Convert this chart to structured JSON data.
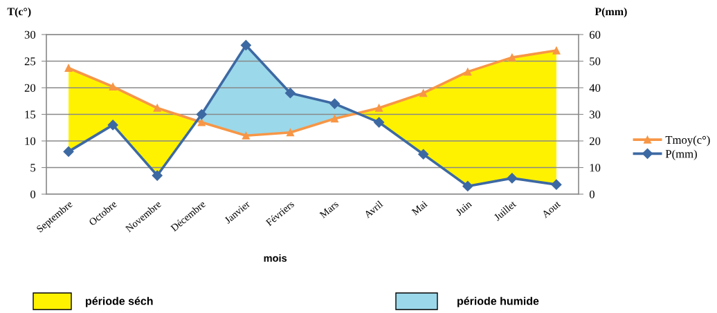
{
  "chart_data": {
    "type": "line",
    "xlabel": "mois",
    "ylabel": "T(c°)",
    "y2label": "P(mm)",
    "categories": [
      "Septembre",
      "Octobre",
      "Novembre",
      "Décembre",
      "Janvier",
      "Févriers",
      "Mars",
      "Avril",
      "Mai",
      "Juin",
      "Juillet",
      "Aout"
    ],
    "series": [
      {
        "name": "Tmoy(c°)",
        "color": "#f79646",
        "marker": "triangle",
        "values": [
          23.7,
          20.2,
          16.2,
          13.5,
          11.0,
          11.6,
          14.2,
          16.2,
          19.0,
          23.0,
          25.7,
          27.0
        ]
      },
      {
        "name": "P(mm)",
        "axis": "y2",
        "color": "#3d69a3",
        "marker": "diamond",
        "values": [
          16,
          26,
          7,
          30,
          56,
          38,
          34,
          27,
          15,
          3,
          6,
          3.6
        ]
      }
    ],
    "ylim": [
      0,
      30
    ],
    "yticks": [
      0,
      5,
      10,
      15,
      20,
      25,
      30
    ],
    "y2lim": [
      0,
      60
    ],
    "y2ticks": [
      0,
      10,
      20,
      30,
      40,
      50,
      60
    ],
    "grid": "y",
    "legend": "right",
    "annotations": [
      "période séch",
      "période humide"
    ]
  }
}
